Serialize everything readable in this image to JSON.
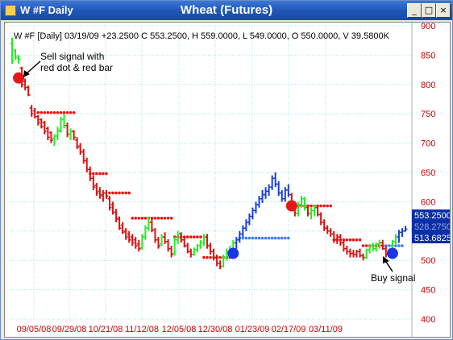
{
  "window": {
    "short_title": "W #F Daily",
    "title": "Wheat (Futures)",
    "buttons": {
      "minimize": "_",
      "maximize": "□",
      "close": "×"
    }
  },
  "header_text": "W #F [Daily] 03/19/09 +23.2500 C 553.2500, H 559.0000, L 549.0000, O 550.0000, V 39.5800K",
  "annotations": {
    "sell": [
      "Sell signal with",
      "red dot & red bar"
    ],
    "buy": "Buy signal"
  },
  "colors": {
    "up": "#22ee22",
    "down": "#dd1111",
    "blue": "#1a3fd8",
    "stop_red": "#ee1111",
    "stop_blue": "#3a7cf0",
    "grid": "#9fe6e6",
    "axis_text": "#cc0000",
    "price_tag": "#0b2fa8"
  },
  "price_tags": [
    "553.2500",
    "528.2750",
    "513.6825"
  ],
  "chart_data": {
    "type": "bar",
    "title": "Wheat (Futures)",
    "ylim": [
      400,
      900
    ],
    "yticks": [
      400,
      450,
      500,
      550,
      600,
      650,
      700,
      750,
      800,
      850,
      900
    ],
    "xticks": [
      "09/05/08",
      "09/29/08",
      "10/21/08",
      "11/12/08",
      "12/05/08",
      "12/30/08",
      "01/23/09",
      "02/17/09",
      "03/11/09"
    ],
    "last": {
      "open": 550.0,
      "high": 559.0,
      "low": 549.0,
      "close": 553.25,
      "change": 23.25,
      "volume": "39.5800K"
    },
    "signals": [
      {
        "type": "sell",
        "color": "red",
        "price": 811
      },
      {
        "type": "buy",
        "color": "blue",
        "price": 512
      },
      {
        "type": "sell",
        "color": "red",
        "price": 593
      },
      {
        "type": "buy",
        "color": "blue",
        "price": 512
      }
    ],
    "bars": [
      [
        870,
        880,
        835,
        840,
        "g"
      ],
      [
        858,
        860,
        842,
        848,
        "g"
      ],
      [
        845,
        850,
        835,
        843,
        "g"
      ],
      [
        828,
        830,
        795,
        800,
        "r"
      ],
      [
        805,
        810,
        790,
        795,
        "r"
      ],
      [
        795,
        798,
        780,
        782,
        "r"
      ],
      [
        760,
        765,
        745,
        750,
        "r"
      ],
      [
        755,
        760,
        742,
        745,
        "r"
      ],
      [
        745,
        748,
        730,
        735,
        "r"
      ],
      [
        740,
        742,
        725,
        728,
        "r"
      ],
      [
        735,
        738,
        715,
        720,
        "r"
      ],
      [
        725,
        728,
        705,
        710,
        "r"
      ],
      [
        718,
        720,
        700,
        705,
        "r"
      ],
      [
        708,
        715,
        695,
        712,
        "g"
      ],
      [
        712,
        728,
        705,
        722,
        "g"
      ],
      [
        720,
        745,
        718,
        740,
        "g"
      ],
      [
        740,
        750,
        725,
        730,
        "g"
      ],
      [
        730,
        735,
        710,
        715,
        "r"
      ],
      [
        715,
        725,
        705,
        720,
        "g"
      ],
      [
        720,
        722,
        705,
        710,
        "r"
      ],
      [
        705,
        710,
        690,
        693,
        "r"
      ],
      [
        695,
        700,
        680,
        685,
        "r"
      ],
      [
        685,
        690,
        665,
        670,
        "r"
      ],
      [
        670,
        675,
        650,
        655,
        "r"
      ],
      [
        655,
        660,
        635,
        640,
        "r"
      ],
      [
        640,
        645,
        620,
        625,
        "r"
      ],
      [
        628,
        632,
        610,
        615,
        "r"
      ],
      [
        618,
        625,
        605,
        610,
        "r"
      ],
      [
        612,
        620,
        600,
        615,
        "r"
      ],
      [
        615,
        620,
        605,
        610,
        "r"
      ],
      [
        605,
        610,
        585,
        590,
        "r"
      ],
      [
        595,
        600,
        578,
        582,
        "r"
      ],
      [
        582,
        588,
        565,
        570,
        "r"
      ],
      [
        572,
        575,
        552,
        555,
        "r"
      ],
      [
        560,
        565,
        545,
        548,
        "r"
      ],
      [
        550,
        555,
        535,
        540,
        "r"
      ],
      [
        545,
        550,
        530,
        535,
        "r"
      ],
      [
        540,
        545,
        525,
        530,
        "r"
      ],
      [
        535,
        540,
        520,
        525,
        "r"
      ],
      [
        528,
        535,
        515,
        520,
        "r"
      ],
      [
        522,
        545,
        518,
        540,
        "g"
      ],
      [
        540,
        560,
        535,
        555,
        "g"
      ],
      [
        555,
        575,
        550,
        565,
        "g"
      ],
      [
        565,
        570,
        548,
        552,
        "r"
      ],
      [
        552,
        555,
        530,
        535,
        "r"
      ],
      [
        535,
        540,
        520,
        525,
        "r"
      ],
      [
        528,
        545,
        525,
        540,
        "g"
      ],
      [
        540,
        548,
        528,
        532,
        "r"
      ],
      [
        532,
        536,
        515,
        520,
        "r"
      ],
      [
        520,
        525,
        505,
        510,
        "r"
      ],
      [
        512,
        540,
        508,
        535,
        "g"
      ],
      [
        535,
        550,
        528,
        545,
        "g"
      ],
      [
        545,
        548,
        530,
        535,
        "r"
      ],
      [
        535,
        540,
        522,
        525,
        "r"
      ],
      [
        525,
        530,
        512,
        515,
        "r"
      ],
      [
        515,
        520,
        505,
        510,
        "r"
      ],
      [
        510,
        522,
        508,
        518,
        "g"
      ],
      [
        518,
        528,
        514,
        525,
        "g"
      ],
      [
        525,
        535,
        520,
        530,
        "g"
      ],
      [
        530,
        545,
        525,
        540,
        "g"
      ],
      [
        540,
        545,
        520,
        525,
        "r"
      ],
      [
        525,
        530,
        510,
        515,
        "r"
      ],
      [
        515,
        520,
        500,
        505,
        "r"
      ],
      [
        505,
        510,
        490,
        495,
        "r"
      ],
      [
        495,
        500,
        485,
        490,
        "r"
      ],
      [
        490,
        510,
        488,
        505,
        "g"
      ],
      [
        505,
        520,
        500,
        515,
        "g"
      ],
      [
        515,
        525,
        510,
        520,
        "g"
      ],
      [
        520,
        535,
        515,
        530,
        "g"
      ],
      [
        530,
        540,
        520,
        535,
        "b"
      ],
      [
        535,
        550,
        530,
        545,
        "b"
      ],
      [
        545,
        560,
        540,
        555,
        "b"
      ],
      [
        555,
        570,
        550,
        565,
        "b"
      ],
      [
        565,
        580,
        560,
        575,
        "b"
      ],
      [
        575,
        590,
        570,
        585,
        "b"
      ],
      [
        585,
        600,
        580,
        595,
        "b"
      ],
      [
        595,
        610,
        590,
        605,
        "b"
      ],
      [
        605,
        620,
        598,
        612,
        "b"
      ],
      [
        612,
        625,
        605,
        618,
        "b"
      ],
      [
        618,
        630,
        610,
        625,
        "b"
      ],
      [
        625,
        645,
        620,
        640,
        "b"
      ],
      [
        640,
        650,
        625,
        630,
        "b"
      ],
      [
        630,
        635,
        610,
        615,
        "b"
      ],
      [
        615,
        620,
        600,
        605,
        "b"
      ],
      [
        605,
        625,
        600,
        620,
        "b"
      ],
      [
        620,
        630,
        608,
        612,
        "b"
      ],
      [
        612,
        615,
        590,
        595,
        "r"
      ],
      [
        595,
        600,
        575,
        580,
        "r"
      ],
      [
        580,
        600,
        575,
        595,
        "g"
      ],
      [
        595,
        610,
        590,
        605,
        "g"
      ],
      [
        605,
        608,
        585,
        590,
        "g"
      ],
      [
        590,
        595,
        575,
        580,
        "r"
      ],
      [
        580,
        590,
        570,
        585,
        "g"
      ],
      [
        585,
        595,
        575,
        590,
        "g"
      ],
      [
        590,
        595,
        575,
        578,
        "r"
      ],
      [
        578,
        582,
        560,
        565,
        "r"
      ],
      [
        565,
        570,
        550,
        555,
        "r"
      ],
      [
        555,
        560,
        545,
        550,
        "r"
      ],
      [
        550,
        555,
        540,
        545,
        "r"
      ],
      [
        545,
        550,
        530,
        535,
        "r"
      ],
      [
        535,
        545,
        528,
        540,
        "r"
      ],
      [
        540,
        545,
        525,
        530,
        "r"
      ],
      [
        530,
        535,
        515,
        520,
        "r"
      ],
      [
        520,
        525,
        510,
        515,
        "r"
      ],
      [
        515,
        520,
        505,
        512,
        "r"
      ],
      [
        512,
        518,
        505,
        510,
        "r"
      ],
      [
        510,
        518,
        505,
        515,
        "r"
      ],
      [
        515,
        520,
        505,
        508,
        "r"
      ],
      [
        508,
        512,
        500,
        505,
        "r"
      ],
      [
        505,
        520,
        502,
        518,
        "g"
      ],
      [
        518,
        528,
        512,
        525,
        "g"
      ],
      [
        525,
        530,
        515,
        520,
        "g"
      ],
      [
        520,
        530,
        515,
        528,
        "g"
      ],
      [
        528,
        535,
        520,
        530,
        "g"
      ],
      [
        530,
        535,
        518,
        520,
        "r"
      ],
      [
        520,
        525,
        505,
        510,
        "r"
      ],
      [
        510,
        520,
        505,
        518,
        "g"
      ],
      [
        518,
        535,
        515,
        532,
        "g"
      ],
      [
        532,
        545,
        528,
        540,
        "g"
      ],
      [
        540,
        552,
        530,
        548,
        "b"
      ],
      [
        548,
        555,
        540,
        550,
        "b"
      ],
      [
        550,
        559,
        549,
        553.25,
        "b"
      ]
    ],
    "stops": [
      {
        "from": 8,
        "to": 19,
        "price": 752,
        "color": "red"
      },
      {
        "from": 24,
        "to": 29,
        "price": 648,
        "color": "red"
      },
      {
        "from": 30,
        "to": 36,
        "price": 615,
        "color": "red"
      },
      {
        "from": 37,
        "to": 49,
        "price": 572,
        "color": "red"
      },
      {
        "from": 50,
        "to": 58,
        "price": 540,
        "color": "red"
      },
      {
        "from": 59,
        "to": 67,
        "price": 505,
        "color": "red"
      },
      {
        "from": 70,
        "to": 85,
        "price": 538,
        "color": "blue"
      },
      {
        "from": 86,
        "to": 98,
        "price": 593,
        "color": "red"
      },
      {
        "from": 99,
        "to": 107,
        "price": 535,
        "color": "red"
      },
      {
        "from": 108,
        "to": 114,
        "price": 525,
        "color": "red"
      },
      {
        "from": 115,
        "to": 120,
        "price": 525,
        "color": "blue"
      }
    ]
  }
}
